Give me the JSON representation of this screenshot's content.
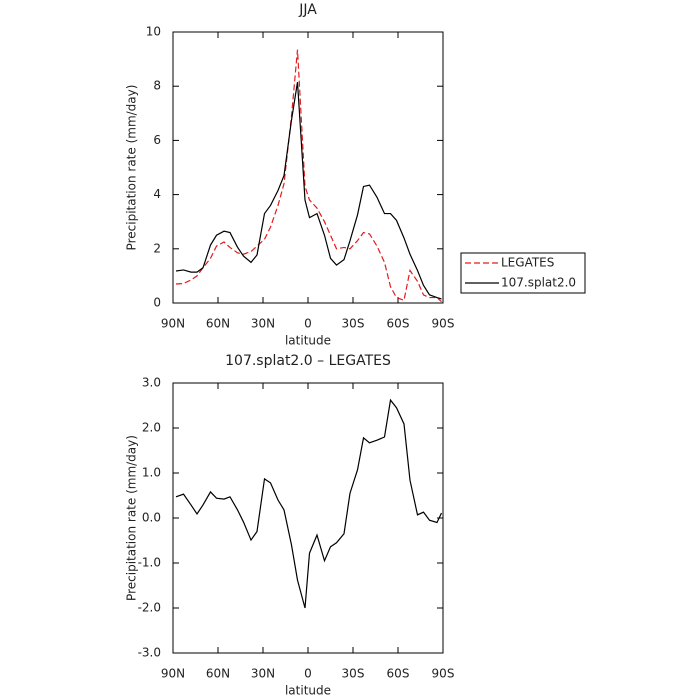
{
  "chart_data": [
    {
      "type": "line",
      "title": "JJA",
      "xlabel": "latitude",
      "ylabel": "Precipitation rate (mm/day)",
      "x": [
        88,
        83,
        78,
        74,
        70,
        65,
        61,
        56,
        52,
        47,
        43,
        38,
        34,
        29,
        25,
        20,
        16,
        11,
        7,
        2,
        -1,
        -6,
        -11,
        -15,
        -19,
        -24,
        -28,
        -33,
        -37,
        -41,
        -46,
        -51,
        -55,
        -59,
        -64,
        -68,
        -73,
        -77,
        -81,
        -86,
        -89
      ],
      "series": [
        {
          "name": "LEGATES",
          "color": "#e41a1c",
          "style": "dashed",
          "values": [
            0.7,
            0.72,
            0.85,
            1.0,
            1.3,
            1.65,
            2.1,
            2.25,
            2.05,
            1.85,
            1.8,
            1.9,
            2.1,
            2.35,
            2.8,
            3.6,
            4.4,
            6.9,
            9.35,
            4.3,
            3.8,
            3.5,
            3.0,
            2.5,
            2.0,
            2.05,
            2.0,
            2.3,
            2.6,
            2.55,
            2.1,
            1.5,
            0.6,
            0.2,
            0.1,
            1.2,
            0.8,
            0.3,
            0.2,
            0.2,
            0.05
          ]
        },
        {
          "name": "107.splat2.0",
          "color": "#000000",
          "style": "solid",
          "values": [
            1.18,
            1.22,
            1.14,
            1.14,
            1.3,
            2.14,
            2.5,
            2.65,
            2.6,
            2.06,
            1.73,
            1.5,
            1.77,
            3.3,
            3.6,
            4.15,
            4.7,
            6.75,
            8.15,
            3.8,
            3.15,
            3.3,
            2.5,
            1.65,
            1.4,
            1.6,
            2.3,
            3.25,
            4.3,
            4.35,
            3.9,
            3.3,
            3.3,
            3.05,
            2.4,
            1.8,
            1.2,
            0.65,
            0.3,
            0.2,
            0.15
          ]
        }
      ],
      "xlim": [
        90,
        -90
      ],
      "xticks": [
        {
          "value": 90,
          "label": "90N"
        },
        {
          "value": 60,
          "label": "60N"
        },
        {
          "value": 30,
          "label": "30N"
        },
        0,
        {
          "value": -30,
          "label": "30S"
        },
        {
          "value": -60,
          "label": "60S"
        },
        {
          "value": -90,
          "label": "90S"
        }
      ],
      "ylim": [
        0,
        10
      ],
      "yticks": [
        0,
        2,
        4,
        6,
        8,
        10
      ],
      "legend": "right"
    },
    {
      "type": "line",
      "title": "107.splat2.0 – LEGATES",
      "xlabel": "latitude",
      "ylabel": "Precipitation rate (mm/day)",
      "x": [
        88,
        83,
        78,
        74,
        70,
        65,
        61,
        56,
        52,
        47,
        43,
        38,
        34,
        29,
        25,
        20,
        16,
        11,
        7,
        2,
        -1,
        -6,
        -11,
        -15,
        -19,
        -24,
        -28,
        -33,
        -37,
        -41,
        -46,
        -51,
        -55,
        -59,
        -64,
        -68,
        -73,
        -77,
        -81,
        -86,
        -89
      ],
      "series": [
        {
          "color": "#000000",
          "style": "solid",
          "values": [
            0.47,
            0.53,
            0.29,
            0.09,
            0.29,
            0.58,
            0.44,
            0.42,
            0.47,
            0.18,
            -0.09,
            -0.49,
            -0.3,
            0.87,
            0.78,
            0.4,
            0.18,
            -0.6,
            -1.38,
            -2.0,
            -0.78,
            -0.38,
            -0.95,
            -0.64,
            -0.55,
            -0.35,
            0.55,
            1.07,
            1.78,
            1.67,
            1.73,
            1.8,
            2.62,
            2.45,
            2.09,
            0.84,
            0.07,
            0.13,
            -0.05,
            -0.1,
            0.11
          ]
        }
      ],
      "xlim": [
        90,
        -90
      ],
      "xticks": [
        {
          "value": 90,
          "label": "90N"
        },
        {
          "value": 60,
          "label": "60N"
        },
        {
          "value": 30,
          "label": "30N"
        },
        0,
        {
          "value": -30,
          "label": "30S"
        },
        {
          "value": -60,
          "label": "60S"
        },
        {
          "value": -90,
          "label": "90S"
        }
      ],
      "ylim": [
        -3,
        3
      ],
      "yticks": [
        {
          "value": -3,
          "label": "-3.0"
        },
        {
          "value": -2,
          "label": "-2.0"
        },
        {
          "value": -1,
          "label": "-1.0"
        },
        {
          "value": 0,
          "label": "0.0"
        },
        {
          "value": 1,
          "label": "1.0"
        },
        {
          "value": 2,
          "label": "2.0"
        },
        {
          "value": 3,
          "label": "3.0"
        }
      ]
    }
  ]
}
